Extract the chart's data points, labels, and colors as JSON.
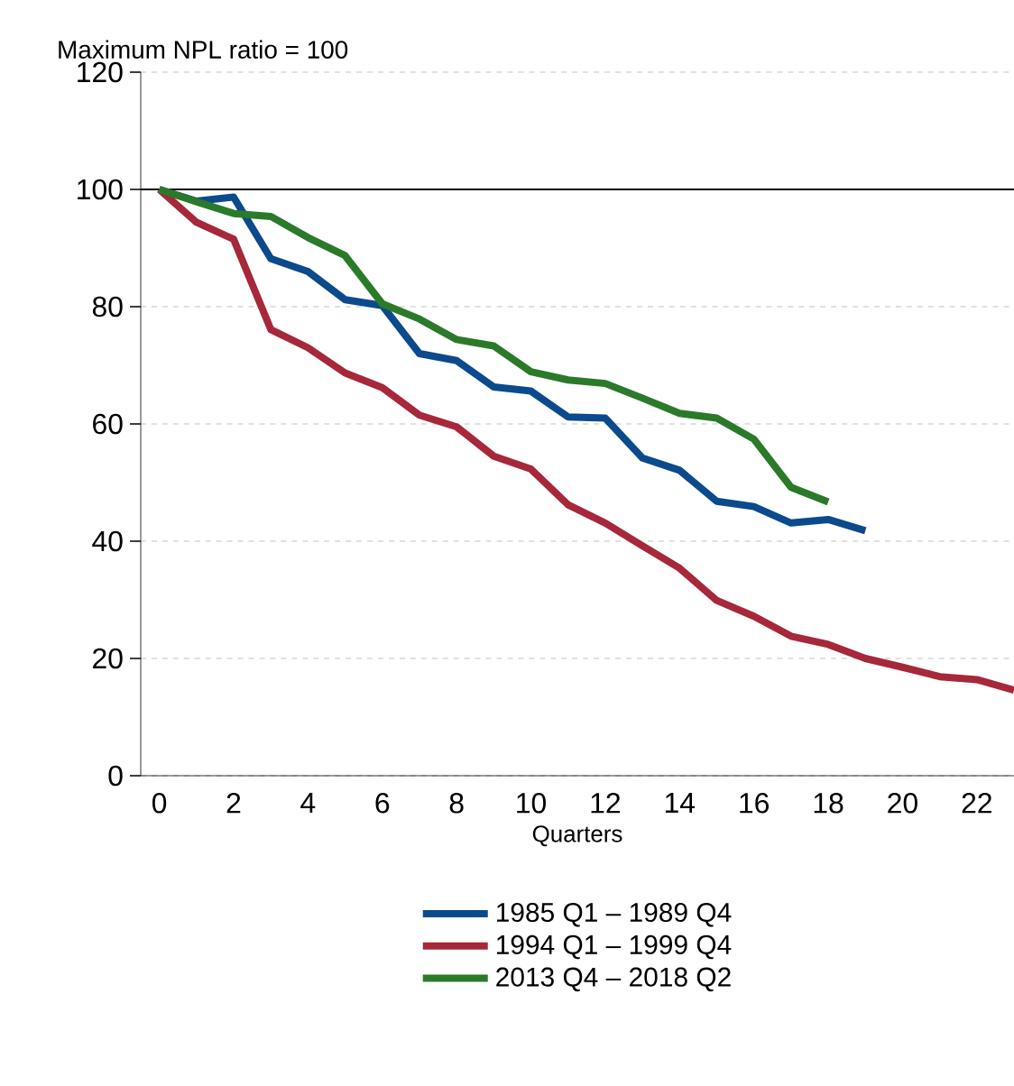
{
  "chart_data": {
    "type": "line",
    "ylabel": "Maximum NPL ratio = 100",
    "xlabel": "Quarters",
    "x": [
      0,
      1,
      2,
      3,
      4,
      5,
      6,
      7,
      8,
      9,
      10,
      11,
      12,
      13,
      14,
      15,
      16,
      17,
      18,
      19,
      20,
      21,
      22,
      23
    ],
    "series": [
      {
        "name": "1985 Q1 – 1989 Q4",
        "color": "#0b4a8c",
        "values": [
          100,
          98,
          98.7,
          88.2,
          86,
          81.2,
          80.2,
          72,
          70.8,
          66.3,
          65.6,
          61.2,
          61,
          54.2,
          52.1,
          46.8,
          45.9,
          43.1,
          43.7,
          41.8,
          null,
          null,
          null,
          null
        ]
      },
      {
        "name": "1994 Q1 – 1999 Q4",
        "color": "#a6283a",
        "values": [
          100,
          94.4,
          91.5,
          76.1,
          73,
          68.7,
          66.2,
          61.5,
          59.5,
          54.5,
          52.3,
          46.2,
          43.1,
          39.2,
          35.4,
          29.9,
          27.2,
          23.8,
          22.4,
          20,
          18.5,
          16.9,
          16.4,
          14.6
        ]
      },
      {
        "name": "2013 Q4 – 2018 Q2",
        "color": "#2a7a2a",
        "values": [
          100,
          97.9,
          95.9,
          95.4,
          91.8,
          88.7,
          80.5,
          77.9,
          74.4,
          73.3,
          68.9,
          67.5,
          66.9,
          64.4,
          61.8,
          61,
          57.4,
          49.2,
          46.7,
          null,
          null,
          null,
          null,
          null
        ]
      }
    ],
    "xlim": [
      -0.5,
      23
    ],
    "xticks": [
      0,
      2,
      4,
      6,
      8,
      10,
      12,
      14,
      16,
      18,
      20,
      22
    ],
    "ylim": [
      0,
      120
    ],
    "yticks": [
      0,
      20,
      40,
      60,
      80,
      100,
      120
    ],
    "ref_lines": [
      {
        "axis": "y",
        "value": 100,
        "color": "#000000"
      }
    ],
    "grid": "y",
    "legend": "bottom",
    "line_style": "solid",
    "marker": "none"
  }
}
